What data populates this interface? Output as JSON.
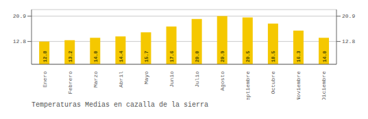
{
  "chart_data": {
    "type": "bar",
    "title": "Temperaturas Medias en cazalla de la sierra",
    "categories": [
      "Enero",
      "Febrero",
      "Marzo",
      "Abril",
      "Mayo",
      "Junio",
      "Julio",
      "Agosto",
      "Septiembre",
      "Octubre",
      "Noviembre",
      "Diciembre"
    ],
    "values": [
      12.8,
      13.2,
      14.0,
      14.4,
      15.7,
      17.6,
      20.0,
      20.9,
      20.5,
      18.5,
      16.3,
      14.0
    ],
    "value_labels": [
      "12.8",
      "13.2",
      "14.0",
      "14.4",
      "15.7",
      "17.6",
      "20.0",
      "20.9",
      "20.5",
      "18.5",
      "16.3",
      "14.0"
    ],
    "data_labels": true,
    "color": "#F5C800",
    "ylim": [
      5.5,
      23.0
    ],
    "yticks": [
      12.8,
      20.9
    ],
    "y2lim": [
      5.5,
      23.0
    ],
    "y2ticks": [
      12.8,
      20.9
    ],
    "grid": true
  }
}
